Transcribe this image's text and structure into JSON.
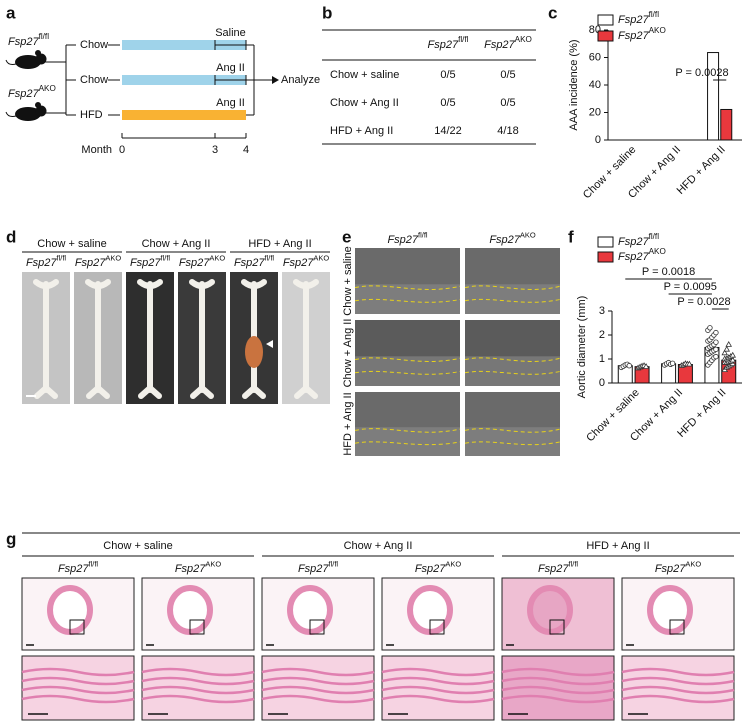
{
  "panel_labels": [
    "a",
    "b",
    "c",
    "d",
    "e",
    "f",
    "g"
  ],
  "genotypes": [
    {
      "gene": "Fsp27",
      "sup": "fl/fl"
    },
    {
      "gene": "Fsp27",
      "sup": "AKO"
    }
  ],
  "conditions": [
    "Chow + saline",
    "Chow + Ang II",
    "HFD + Ang II"
  ],
  "panel_a": {
    "diets": [
      "Chow",
      "Chow",
      "HFD"
    ],
    "treatments": [
      "Saline",
      "Ang II",
      "Ang II"
    ],
    "diet_colors": [
      "#9fd3ea",
      "#9fd3ea",
      "#f9b233"
    ],
    "outcome": "Analyze",
    "axis_label": "Month",
    "xlim": [
      0,
      4
    ],
    "xticks": [
      0,
      3,
      4
    ]
  },
  "table": {
    "rows": [
      [
        "0/5",
        "0/5"
      ],
      [
        "0/5",
        "0/5"
      ],
      [
        "14/22",
        "4/18"
      ]
    ]
  },
  "chart_data": [
    {
      "type": "bar",
      "y_label": "AAA incidence (%)",
      "categories": [
        "Chow + saline",
        "Chow + Ang II",
        "HFD + Ang II"
      ],
      "series": [
        {
          "name": "Fsp27",
          "name_sup": "fl/fl",
          "color": "#ffffff",
          "values": [
            0,
            0,
            63.6
          ]
        },
        {
          "name": "Fsp27",
          "name_sup": "AKO",
          "color": "#e8383d",
          "values": [
            0,
            0,
            22.2
          ]
        }
      ],
      "ylim": [
        0,
        80
      ],
      "yticks": [
        0,
        20,
        40,
        60,
        80
      ],
      "annotations": [
        "P = 0.0028"
      ]
    },
    {
      "type": "bar",
      "y_label": "Aortic diameter (mm)",
      "categories": [
        "Chow + saline",
        "Chow + Ang II",
        "HFD + Ang II"
      ],
      "series": [
        {
          "name": "Fsp27",
          "name_sup": "fl/fl",
          "color": "#ffffff",
          "values": [
            0.72,
            0.8,
            1.48
          ],
          "errors": [
            0.03,
            0.03,
            0.1
          ],
          "points": [
            [
              0.65,
              0.7,
              0.75,
              0.78,
              0.72
            ],
            [
              0.75,
              0.8,
              0.85,
              0.78,
              0.82
            ],
            [
              0.75,
              0.85,
              0.95,
              1.05,
              1.1,
              1.2,
              1.25,
              1.3,
              1.35,
              1.4,
              1.45,
              1.5,
              1.55,
              1.6,
              1.7,
              1.75,
              1.8,
              1.9,
              2.0,
              2.1,
              2.2,
              2.3
            ]
          ]
        },
        {
          "name": "Fsp27",
          "name_sup": "AKO",
          "color": "#e8383d",
          "values": [
            0.68,
            0.77,
            0.95
          ],
          "errors": [
            0.02,
            0.02,
            0.06
          ],
          "points": [
            [
              0.62,
              0.66,
              0.7,
              0.72,
              0.68
            ],
            [
              0.72,
              0.75,
              0.8,
              0.78,
              0.78
            ],
            [
              0.55,
              0.65,
              0.7,
              0.75,
              0.8,
              0.85,
              0.85,
              0.9,
              0.9,
              0.95,
              1.0,
              1.0,
              1.05,
              1.1,
              1.15,
              1.25,
              1.4,
              1.6
            ]
          ]
        }
      ],
      "ylim": [
        0,
        3
      ],
      "yticks": [
        0,
        1,
        2,
        3
      ],
      "annotations": [
        "P = 0.0018",
        "P = 0.0095",
        "P = 0.0028"
      ]
    }
  ]
}
